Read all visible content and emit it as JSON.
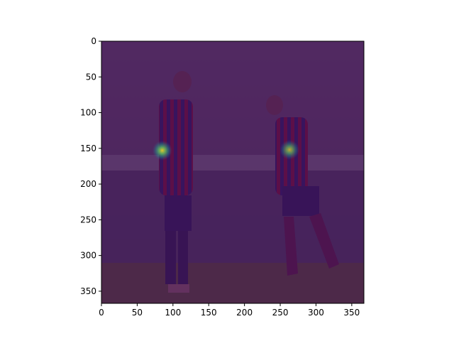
{
  "chart_data": {
    "type": "heatmap",
    "title": "",
    "xlabel": "",
    "ylabel": "",
    "xlim": [
      0,
      367
    ],
    "ylim": [
      367,
      0
    ],
    "y_axis_inverted": true,
    "x_ticks": [
      0,
      50,
      100,
      150,
      200,
      250,
      300,
      350
    ],
    "y_ticks": [
      0,
      50,
      100,
      150,
      200,
      250,
      300,
      350
    ],
    "x_tick_labels": [
      "0",
      "50",
      "100",
      "150",
      "200",
      "250",
      "300",
      "350"
    ],
    "y_tick_labels": [
      "0",
      "50",
      "100",
      "150",
      "200",
      "250",
      "300",
      "350"
    ],
    "background": "photo of two football players in red-and-blue striped kits on a pitch, stadium crowd behind",
    "overlay_colormap": "viridis",
    "overlay_base_color": "#440154",
    "hotspots": [
      {
        "x": 85,
        "y": 153,
        "intensity": 0.85
      },
      {
        "x": 263,
        "y": 152,
        "intensity": 0.7
      }
    ],
    "grid": false,
    "legend": "none"
  }
}
